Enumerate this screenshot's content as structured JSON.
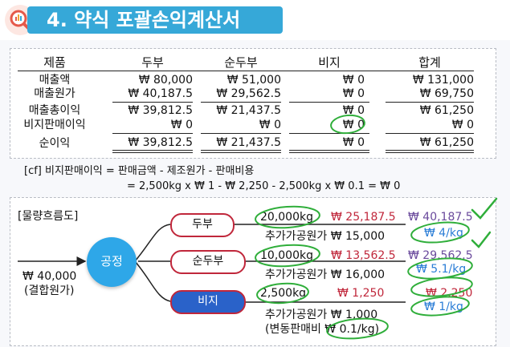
{
  "title": "4. 약식 포괄손익계산서",
  "table": {
    "headers": [
      "제품",
      "두부",
      "순두부",
      "비지",
      "합계"
    ],
    "rows": [
      {
        "label": "매출액",
        "cells": [
          "₩ 80,000",
          "₩ 51,000",
          "₩ 0",
          "₩ 131,000"
        ]
      },
      {
        "label": "매출원가",
        "cells": [
          "₩ 40,187.5",
          "₩ 29,562.5",
          "₩ 0",
          "₩ 69,750"
        ]
      },
      {
        "label": "매출총이익",
        "cells": [
          "₩ 39,812.5",
          "₩ 21,437.5",
          "₩ 0",
          "₩ 61,250"
        ]
      },
      {
        "label": "비지판매이익",
        "cells": [
          "₩ 0",
          "₩ 0",
          "₩ 0",
          "₩ 0"
        ]
      },
      {
        "label": "순이익",
        "cells": [
          "₩ 39,812.5",
          "₩ 21,437.5",
          "₩ 0",
          "₩ 61,250"
        ]
      }
    ]
  },
  "note": {
    "line1": "[cf]  비지판매이익  =  판매금액  -  제조원가  -  판매비용",
    "line2": "=  2,500kg  x  ₩ 1  -  ₩ 2,250  -  2,500kg  x  ₩ 0.1  =  ₩ 0"
  },
  "flow": {
    "title": "[물량흐름도]",
    "input_cost": "₩ 40,000",
    "input_label": "(결합원가)",
    "process": "공정",
    "products": [
      {
        "name": "두부",
        "qty": "20,000kg",
        "alloc": "₩ 25,187.5",
        "add_cost": "추가가공원가 ₩ 15,000",
        "total": "₩ 40,187.5",
        "unit": "₩ 4/kg"
      },
      {
        "name": "순두부",
        "qty": "10,000kg",
        "alloc": "₩ 13,562.5",
        "add_cost": "추가가공원가 ₩ 16,000",
        "total": "₩ 29,562.5",
        "unit": "₩ 5.1/kg"
      },
      {
        "name": "비지",
        "qty": "2,500kg",
        "alloc": "₩ 1,250",
        "add_cost": "추가가공원가 ₩ 1,000",
        "total": "₩ 2,250",
        "unit": "₩ 1/kg"
      }
    ],
    "variable_selling": "(변동판매비 ₩ 0.1/kg)"
  },
  "colors": {
    "title_bar": "#36a8d8",
    "process_circle": "#2ea7e8",
    "product_ring": "#c0273b",
    "highlight_fill": "#2a62c9",
    "hand_green": "#2fae3a",
    "hand_blue": "#2a7dd6"
  }
}
